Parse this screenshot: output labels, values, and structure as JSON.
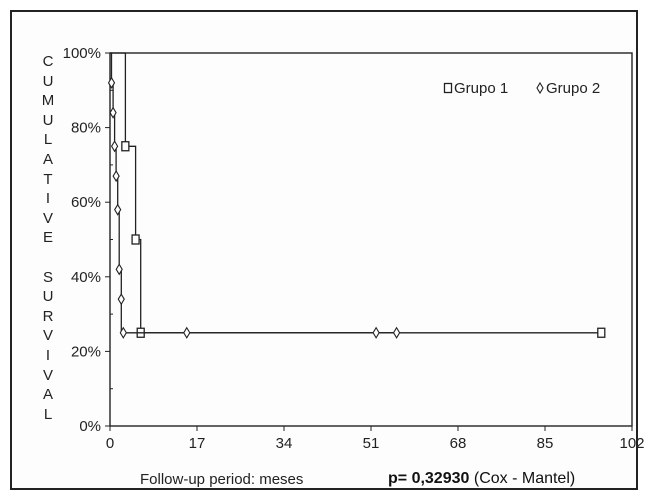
{
  "chart_data": {
    "type": "line",
    "ylabel": "CUMULATIVE SURVIVAL",
    "xlabel": "Follow-up period: meses",
    "annotation": {
      "value": "p= 0,32930",
      "test": "(Cox - Mantel)"
    },
    "xlim": [
      0,
      102
    ],
    "ylim": [
      0,
      100
    ],
    "x_ticks": [
      "0",
      "17",
      "34",
      "51",
      "68",
      "85",
      "102"
    ],
    "y_ticks": [
      "0%",
      "20%",
      "40%",
      "60%",
      "80%",
      "100%"
    ],
    "legend_position": "top-right",
    "grid": false,
    "series": [
      {
        "name": "Grupo 1",
        "marker": "square",
        "color": "#222222",
        "step_x": [
          0,
          3,
          3,
          5,
          5,
          6,
          6,
          96
        ],
        "step_y": [
          100,
          100,
          75,
          75,
          50,
          50,
          25,
          25
        ],
        "markers_x": [
          3,
          5,
          6,
          96
        ],
        "markers_y": [
          75,
          50,
          25,
          25
        ]
      },
      {
        "name": "Grupo 2",
        "marker": "diamond",
        "color": "#222222",
        "step_x": [
          0,
          0.3,
          0.3,
          0.6,
          0.6,
          0.9,
          0.9,
          1.2,
          1.2,
          1.5,
          1.5,
          1.8,
          1.8,
          2.2,
          2.2,
          56
        ],
        "step_y": [
          100,
          100,
          92,
          92,
          84,
          84,
          75,
          75,
          67,
          67,
          58,
          58,
          42,
          42,
          25,
          25
        ],
        "markers_x": [
          0.3,
          0.6,
          0.9,
          1.2,
          1.5,
          1.8,
          2.2,
          2.6,
          15,
          52,
          56
        ],
        "markers_y": [
          92,
          84,
          75,
          67,
          58,
          42,
          34,
          25,
          25,
          25,
          25
        ]
      }
    ]
  }
}
